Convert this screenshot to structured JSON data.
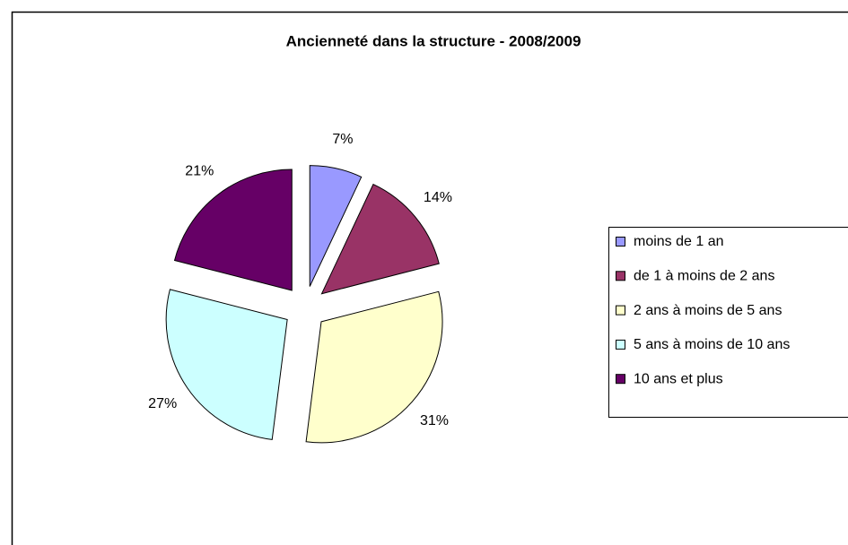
{
  "chart_data": {
    "type": "pie",
    "title": "Ancienneté dans la structure - 2008/2009",
    "categories": [
      "moins de 1 an",
      "de 1 à moins de 2 ans",
      "2 ans à moins de 5 ans",
      "5 ans à moins de 10 ans",
      "10 ans et plus"
    ],
    "values": [
      7,
      14,
      31,
      27,
      21
    ],
    "value_labels": [
      "7%",
      "14%",
      "31%",
      "27%",
      "21%"
    ],
    "colors": [
      "#9999ff",
      "#993366",
      "#ffffcc",
      "#ccffff",
      "#660066"
    ],
    "legend": "right"
  }
}
